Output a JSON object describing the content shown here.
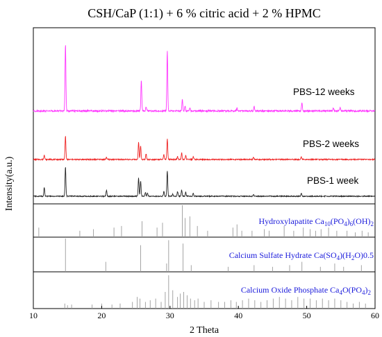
{
  "chart_data": {
    "type": "line",
    "title": "CSH/CaP (1:1) + 6 % citric acid + 2 % HPMC",
    "xlabel": "2 Theta",
    "ylabel": "Intensity(a.u.)",
    "xlim": [
      10,
      60
    ],
    "x_ticks": [
      "10",
      "20",
      "30",
      "40",
      "50",
      "60"
    ],
    "grid": false,
    "series": [
      {
        "name": "PBS-12 weeks",
        "color": "#ff33ff",
        "peaks": [
          [
            14.7,
            1.0
          ],
          [
            25.8,
            0.47
          ],
          [
            26.5,
            0.06
          ],
          [
            29.6,
            0.9
          ],
          [
            31.8,
            0.17
          ],
          [
            32.2,
            0.07
          ],
          [
            32.9,
            0.05
          ],
          [
            39.8,
            0.04
          ],
          [
            42.3,
            0.07
          ],
          [
            49.3,
            0.12
          ],
          [
            53.9,
            0.04
          ],
          [
            54.9,
            0.05
          ]
        ]
      },
      {
        "name": "PBS-2 weeks",
        "color": "#ee2222",
        "peaks": [
          [
            11.6,
            0.1
          ],
          [
            14.7,
            0.5
          ],
          [
            20.7,
            0.05
          ],
          [
            25.4,
            0.36
          ],
          [
            25.7,
            0.29
          ],
          [
            26.5,
            0.12
          ],
          [
            29.1,
            0.1
          ],
          [
            29.6,
            0.43
          ],
          [
            31.1,
            0.06
          ],
          [
            31.7,
            0.14
          ],
          [
            32.3,
            0.08
          ],
          [
            33.4,
            0.06
          ],
          [
            42.2,
            0.04
          ],
          [
            49.2,
            0.06
          ]
        ]
      },
      {
        "name": "PBS-1 week",
        "color": "#222222",
        "peaks": [
          [
            11.6,
            0.22
          ],
          [
            14.7,
            0.73
          ],
          [
            20.7,
            0.15
          ],
          [
            25.4,
            0.45
          ],
          [
            25.7,
            0.38
          ],
          [
            26.4,
            0.1
          ],
          [
            26.7,
            0.08
          ],
          [
            29.1,
            0.12
          ],
          [
            29.6,
            0.63
          ],
          [
            30.4,
            0.05
          ],
          [
            31.1,
            0.12
          ],
          [
            31.7,
            0.15
          ],
          [
            32.3,
            0.1
          ],
          [
            33.4,
            0.08
          ],
          [
            42.2,
            0.05
          ],
          [
            49.2,
            0.08
          ]
        ]
      }
    ],
    "reference_panels": [
      {
        "name": "Hydroxylapatite Ca10(PO4)6(OH)2",
        "label_parts": [
          [
            "Hydroxylapatite Ca",
            ""
          ],
          [
            "10",
            "sub"
          ],
          [
            "(PO",
            ""
          ],
          [
            "4",
            "sub"
          ],
          [
            ")",
            ""
          ],
          [
            "6",
            "sub"
          ],
          [
            "(OH)",
            ""
          ],
          [
            "2",
            "sub"
          ]
        ],
        "lines": [
          [
            10.8,
            0.3
          ],
          [
            16.8,
            0.2
          ],
          [
            18.8,
            0.25
          ],
          [
            21.8,
            0.3
          ],
          [
            22.9,
            0.35
          ],
          [
            25.9,
            0.5
          ],
          [
            28.1,
            0.3
          ],
          [
            28.9,
            0.45
          ],
          [
            31.8,
            1.0
          ],
          [
            32.2,
            0.6
          ],
          [
            32.9,
            0.65
          ],
          [
            34.0,
            0.35
          ],
          [
            35.5,
            0.2
          ],
          [
            39.2,
            0.3
          ],
          [
            39.8,
            0.4
          ],
          [
            40.5,
            0.2
          ],
          [
            42.0,
            0.2
          ],
          [
            43.8,
            0.25
          ],
          [
            44.5,
            0.2
          ],
          [
            46.7,
            0.35
          ],
          [
            48.1,
            0.2
          ],
          [
            49.5,
            0.3
          ],
          [
            50.5,
            0.25
          ],
          [
            51.3,
            0.2
          ],
          [
            52.1,
            0.25
          ],
          [
            53.2,
            0.3
          ],
          [
            54.4,
            0.2
          ],
          [
            55.9,
            0.2
          ],
          [
            57.1,
            0.15
          ],
          [
            58.1,
            0.2
          ],
          [
            59.0,
            0.15
          ]
        ]
      },
      {
        "name": "Calcium Sulfate Hydrate Ca(SO4)(H2O)0.5",
        "label_parts": [
          [
            "Calcium Sulfate Hydrate Ca(SO",
            ""
          ],
          [
            "4",
            "sub"
          ],
          [
            ")(H",
            ""
          ],
          [
            "2",
            "sub"
          ],
          [
            "O)0.5",
            ""
          ]
        ],
        "lines": [
          [
            14.7,
            1.0
          ],
          [
            20.6,
            0.3
          ],
          [
            25.7,
            0.8
          ],
          [
            29.5,
            0.25
          ],
          [
            29.8,
            0.95
          ],
          [
            31.9,
            0.85
          ],
          [
            33.1,
            0.2
          ],
          [
            38.5,
            0.15
          ],
          [
            42.3,
            0.2
          ],
          [
            45.0,
            0.15
          ],
          [
            47.5,
            0.2
          ],
          [
            49.3,
            0.3
          ],
          [
            52.0,
            0.15
          ],
          [
            54.1,
            0.25
          ],
          [
            55.4,
            0.15
          ],
          [
            58.0,
            0.2
          ]
        ]
      },
      {
        "name": "Calcium Oxide Phosphate Ca4O(PO4)2",
        "label_parts": [
          [
            "Calcium Oxide Phosphate Ca",
            ""
          ],
          [
            "4",
            "sub"
          ],
          [
            "O(PO",
            ""
          ],
          [
            "4",
            "sub"
          ],
          [
            ")",
            ""
          ],
          [
            "2",
            "sub"
          ]
        ],
        "lines": [
          [
            14.6,
            0.15
          ],
          [
            15.0,
            0.1
          ],
          [
            15.6,
            0.12
          ],
          [
            18.6,
            0.12
          ],
          [
            20.0,
            0.15
          ],
          [
            21.5,
            0.12
          ],
          [
            22.7,
            0.15
          ],
          [
            24.5,
            0.2
          ],
          [
            25.2,
            0.35
          ],
          [
            25.6,
            0.3
          ],
          [
            26.4,
            0.2
          ],
          [
            27.1,
            0.25
          ],
          [
            27.9,
            0.3
          ],
          [
            28.7,
            0.2
          ],
          [
            29.3,
            0.5
          ],
          [
            29.8,
            1.0
          ],
          [
            30.4,
            0.55
          ],
          [
            31.1,
            0.35
          ],
          [
            31.5,
            0.45
          ],
          [
            32.0,
            0.5
          ],
          [
            32.5,
            0.4
          ],
          [
            33.0,
            0.3
          ],
          [
            33.6,
            0.25
          ],
          [
            34.1,
            0.3
          ],
          [
            35.0,
            0.2
          ],
          [
            36.0,
            0.25
          ],
          [
            37.1,
            0.2
          ],
          [
            38.0,
            0.2
          ],
          [
            38.9,
            0.25
          ],
          [
            39.7,
            0.2
          ],
          [
            40.6,
            0.25
          ],
          [
            41.5,
            0.3
          ],
          [
            42.4,
            0.25
          ],
          [
            43.3,
            0.2
          ],
          [
            44.2,
            0.25
          ],
          [
            45.1,
            0.3
          ],
          [
            46.0,
            0.35
          ],
          [
            46.9,
            0.3
          ],
          [
            47.8,
            0.25
          ],
          [
            48.7,
            0.35
          ],
          [
            49.6,
            0.3
          ],
          [
            50.5,
            0.3
          ],
          [
            51.4,
            0.25
          ],
          [
            52.3,
            0.3
          ],
          [
            53.2,
            0.25
          ],
          [
            54.1,
            0.3
          ],
          [
            55.0,
            0.25
          ],
          [
            55.9,
            0.2
          ],
          [
            56.8,
            0.15
          ],
          [
            57.7,
            0.2
          ],
          [
            58.6,
            0.15
          ]
        ]
      }
    ]
  }
}
